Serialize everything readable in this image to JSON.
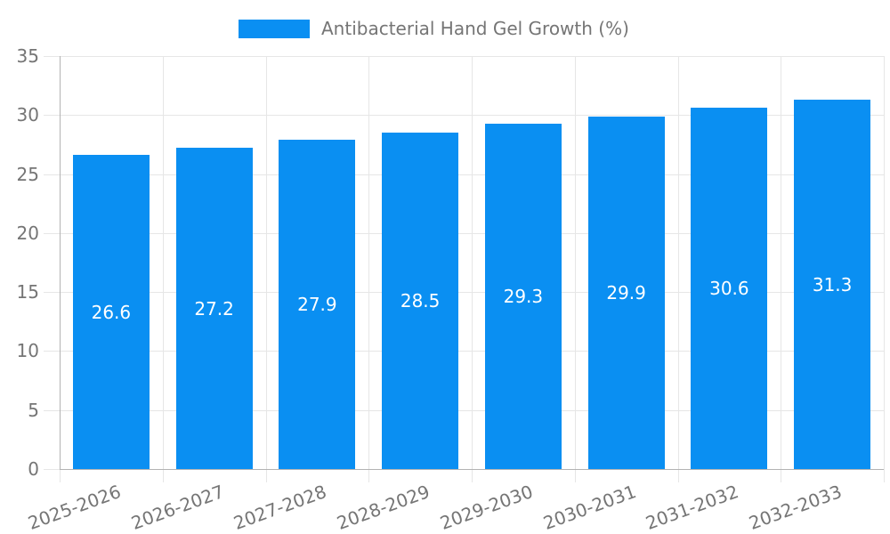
{
  "legend": {
    "label": "Antibacterial Hand Gel Growth (%)"
  },
  "chart_data": {
    "type": "bar",
    "title": "",
    "xlabel": "",
    "ylabel": "",
    "categories": [
      "2025-2026",
      "2026-2027",
      "2027-2028",
      "2028-2029",
      "2029-2030",
      "2030-2031",
      "2031-2032",
      "2032-2033"
    ],
    "values": [
      26.6,
      27.2,
      27.9,
      28.5,
      29.3,
      29.9,
      30.6,
      31.3
    ],
    "value_labels": [
      "26.6",
      "27.2",
      "27.9",
      "28.5",
      "29.3",
      "29.9",
      "30.6",
      "31.3"
    ],
    "ylim": [
      0,
      35
    ],
    "yticks": [
      0,
      5,
      10,
      15,
      20,
      25,
      30,
      35
    ],
    "grid": true,
    "legend_position": "top-center",
    "x_label_rotation_deg": -20
  },
  "colors": {
    "accent": "#0a8ff2",
    "grid": "#e6e6e6",
    "axis": "#b3b3b3",
    "tick_text": "#757575",
    "legend_text": "#757575",
    "bar_label_text": "#ffffff",
    "background": "#ffffff"
  }
}
